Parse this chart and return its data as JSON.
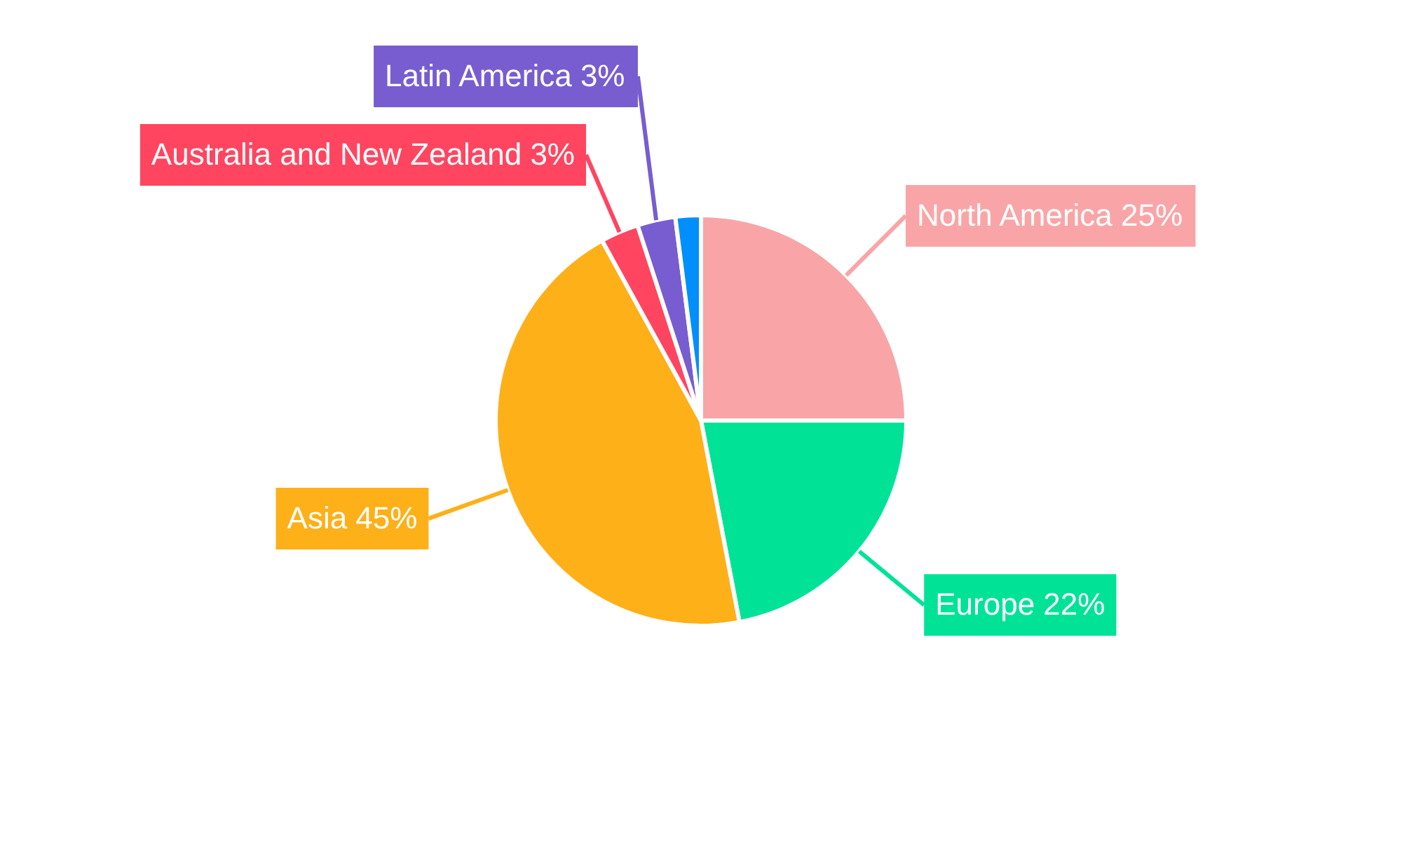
{
  "chart_data": {
    "type": "pie",
    "categories": [
      "North America",
      "Europe",
      "Asia",
      "Australia and New Zealand",
      "Latin America",
      null
    ],
    "values": [
      25,
      22,
      45,
      3,
      3,
      2
    ],
    "value_labels": [
      "25%",
      "22%",
      "45%",
      "3%",
      "3%",
      null
    ],
    "colors": [
      "#f9a5a7",
      "#00e396",
      "#feb019",
      "#ff4560",
      "#775dd0",
      "#008ffb"
    ],
    "legend": false
  }
}
